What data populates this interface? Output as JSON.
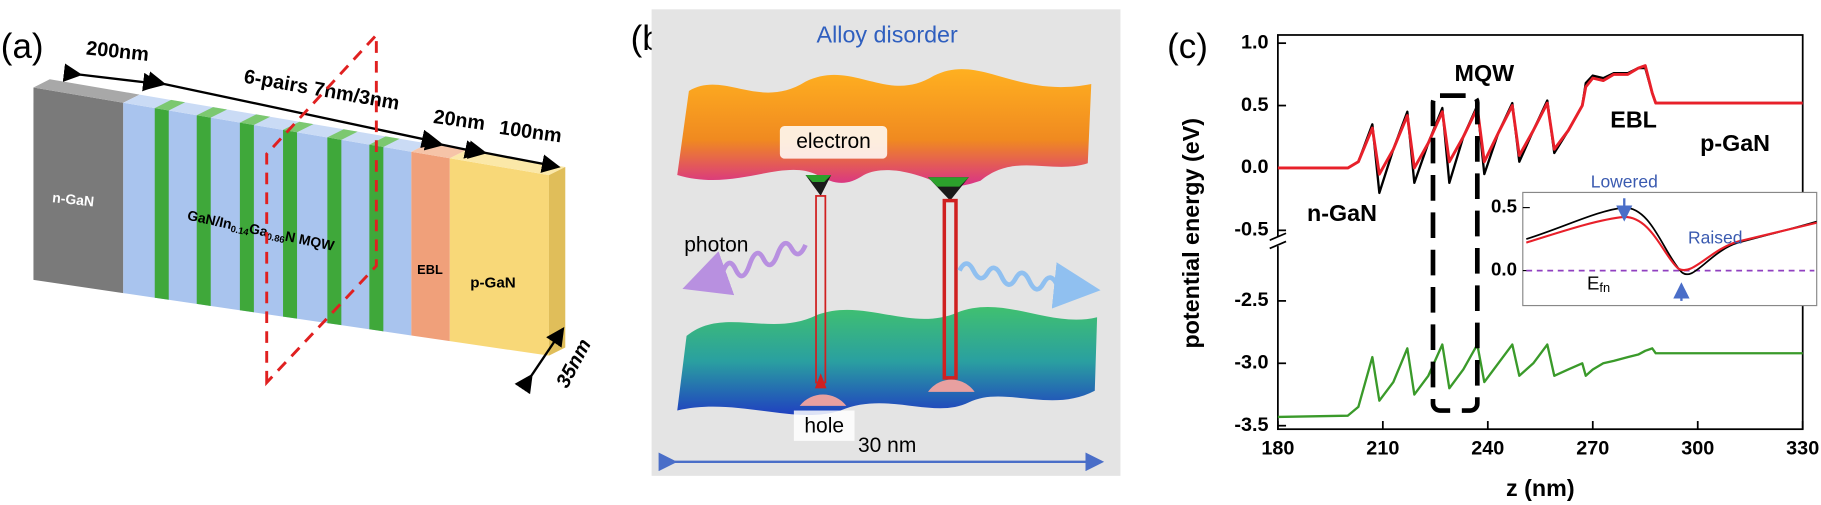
{
  "panel_a": {
    "label": "(a)",
    "dimensions": {
      "n_thickness": "200nm",
      "mqw": "6-pairs 7nm/3nm",
      "ebl_thickness": "20nm",
      "p_thickness": "100nm",
      "width": "35nm"
    },
    "layers": {
      "n": "n-GaN",
      "mqw": [
        "GaN/In",
        "0.14",
        "Ga",
        "0.86",
        "N MQW"
      ],
      "ebl": "EBL",
      "p": "p-GaN"
    }
  },
  "panel_b": {
    "label": "(b)",
    "title": "Alloy disorder",
    "electron": "electron",
    "photon": "photon",
    "hole": "hole",
    "scale": "30 nm"
  },
  "chart_data": {
    "type": "line",
    "label": "(c)",
    "xlabel": "z (nm)",
    "ylabel": "potential energy (eV)",
    "x": [
      180,
      200,
      203,
      207,
      209,
      213,
      217,
      219,
      223,
      227,
      229,
      233,
      237,
      239,
      243,
      247,
      249,
      253,
      257,
      259,
      263,
      267,
      268,
      270,
      273,
      276,
      280,
      283,
      285,
      287,
      288,
      300,
      330
    ],
    "series": [
      {
        "color": "#000000",
        "values": [
          0,
          0,
          0.05,
          0.35,
          -0.2,
          0.15,
          0.45,
          -0.12,
          0.2,
          0.48,
          -0.12,
          0.25,
          0.5,
          -0.05,
          0.28,
          0.52,
          0.05,
          0.3,
          0.54,
          0.12,
          0.3,
          0.5,
          0.68,
          0.74,
          0.72,
          0.76,
          0.76,
          0.8,
          0.8,
          0.6,
          0.52,
          0.52,
          0.52
        ]
      },
      {
        "color": "#e8202a",
        "values": [
          0,
          0,
          0.05,
          0.32,
          -0.05,
          0.15,
          0.42,
          0.0,
          0.2,
          0.45,
          0.05,
          0.25,
          0.48,
          0.05,
          0.28,
          0.5,
          0.1,
          0.3,
          0.52,
          0.15,
          0.3,
          0.5,
          0.65,
          0.72,
          0.7,
          0.75,
          0.75,
          0.8,
          0.82,
          0.6,
          0.52,
          0.52,
          0.52
        ]
      },
      {
        "color": "#3a9a2a",
        "values": [
          -3.43,
          -3.42,
          -3.35,
          -2.95,
          -3.3,
          -3.15,
          -2.88,
          -3.25,
          -3.1,
          -2.85,
          -3.2,
          -3.05,
          -2.85,
          -3.15,
          -3.0,
          -2.85,
          -3.1,
          -3.0,
          -2.85,
          -3.1,
          -3.05,
          -3.0,
          -3.1,
          -3.05,
          -3.0,
          -2.98,
          -2.95,
          -2.93,
          -2.9,
          -2.88,
          -2.92,
          -2.92,
          -2.92
        ]
      }
    ],
    "xlim": [
      180,
      330
    ],
    "xticks": [
      180,
      210,
      240,
      270,
      300,
      330
    ],
    "ylim": [
      -3.5,
      1.0
    ],
    "axis_break": [
      -2.5,
      -0.5
    ],
    "yticks": [
      {
        "value": 1.0,
        "label": "1.0"
      },
      {
        "value": 0.5,
        "label": "0.5"
      },
      {
        "value": 0,
        "label": "0.0"
      },
      {
        "value": -0.5,
        "label": "-0.5"
      },
      {
        "value": -2.5,
        "label": "-2.5"
      },
      {
        "value": -3.0,
        "label": "-3.0"
      },
      {
        "value": -3.5,
        "label": "-3.5"
      }
    ],
    "annotations": {
      "mqw": "MQW",
      "ebl": "EBL",
      "p": "p-GaN",
      "n": "n-GaN"
    },
    "inset": {
      "yticks": [
        {
          "value": 0.5,
          "label": "0.5"
        },
        {
          "value": 0,
          "label": "0.0"
        }
      ],
      "lowered": "Lowered",
      "raised": "Raised",
      "efn": [
        "E",
        "fn"
      ]
    }
  }
}
